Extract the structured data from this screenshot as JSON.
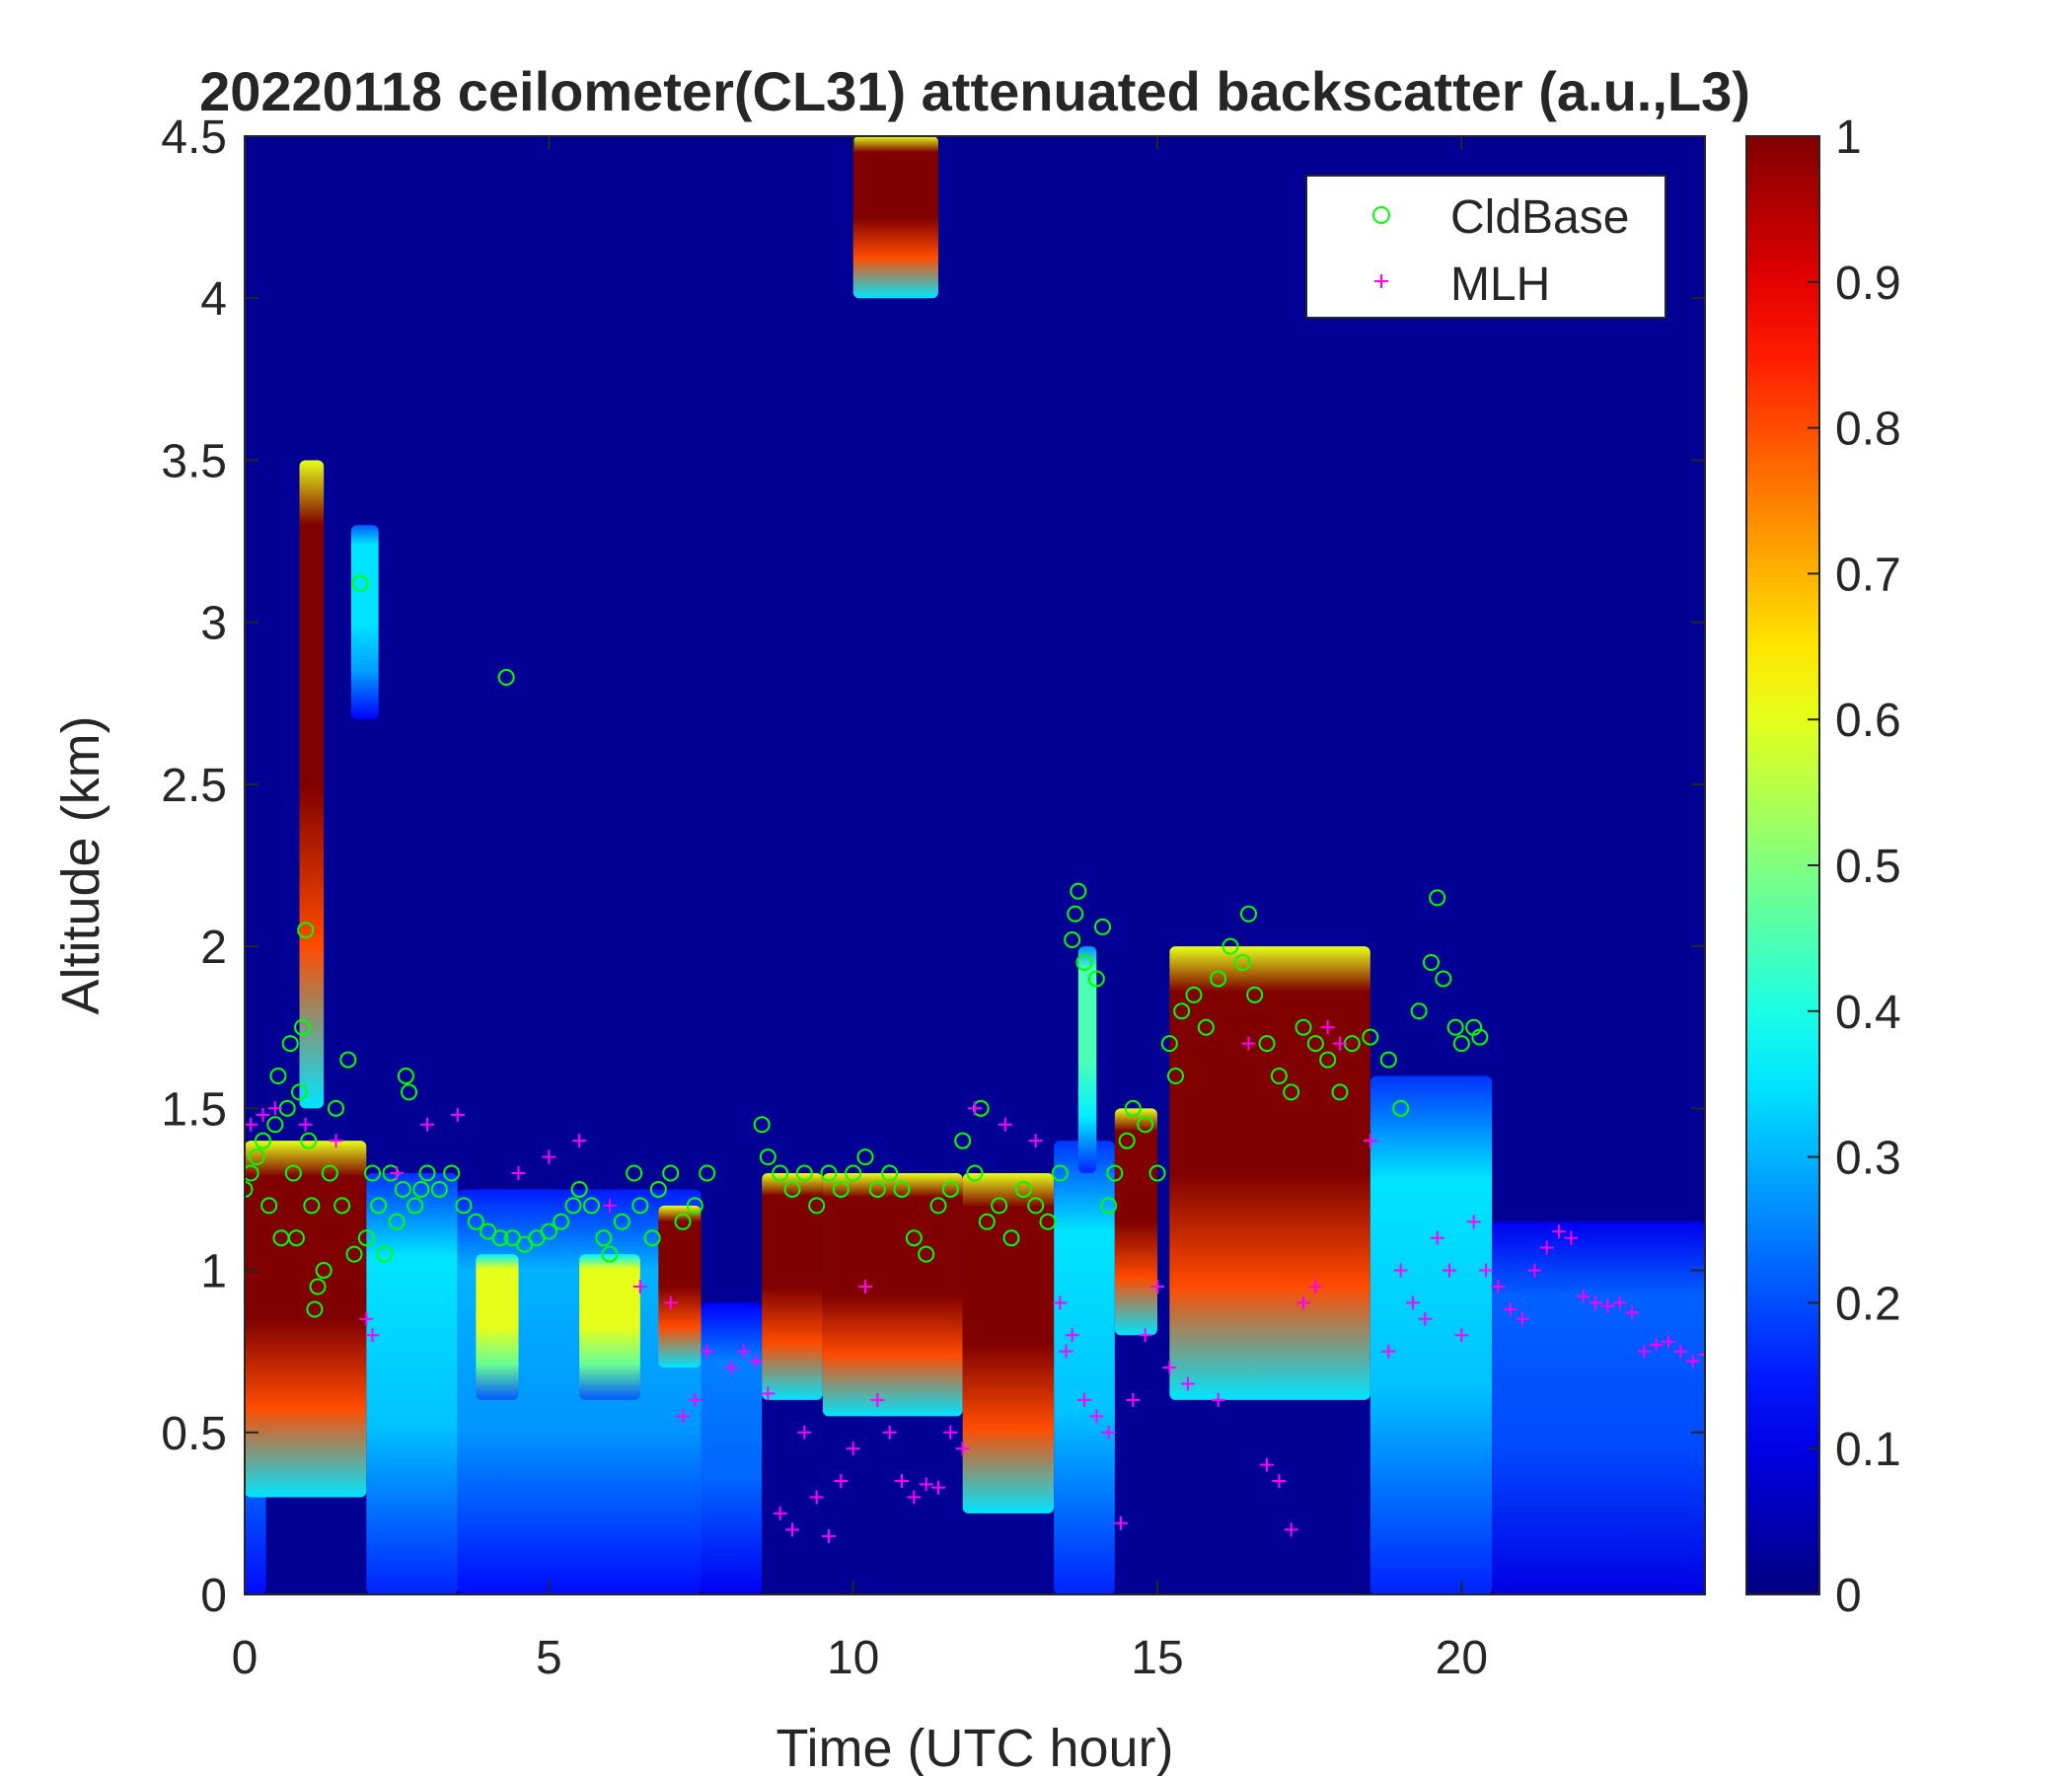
{
  "chart_data": {
    "type": "heatmap",
    "title": "20220118 ceilometer(CL31) attenuated backscatter (a.u.,L3)",
    "xlabel": "Time (UTC hour)",
    "ylabel": "Altitude (km)",
    "xlim": [
      0,
      24
    ],
    "ylim": [
      0,
      4.5
    ],
    "x_ticks": [
      0,
      5,
      10,
      15,
      20
    ],
    "x_tick_labels": [
      "0",
      "5",
      "10",
      "15",
      "20"
    ],
    "y_ticks": [
      0,
      0.5,
      1,
      1.5,
      2,
      2.5,
      3,
      3.5,
      4,
      4.5
    ],
    "y_tick_labels": [
      "0",
      "0.5",
      "1",
      "1.5",
      "2",
      "2.5",
      "3",
      "3.5",
      "4",
      "4.5"
    ],
    "colorbar": {
      "colormap": "jet",
      "range": [
        0,
        1
      ],
      "ticks": [
        0,
        0.1,
        0.2,
        0.3,
        0.4,
        0.5,
        0.6,
        0.7,
        0.8,
        0.9,
        1
      ],
      "tick_labels": [
        "0",
        "0.1",
        "0.2",
        "0.3",
        "0.4",
        "0.5",
        "0.6",
        "0.7",
        "0.8",
        "0.9",
        "1"
      ]
    },
    "legend": {
      "placement": "top-right",
      "entries": [
        {
          "label": "CldBase",
          "marker": "circle",
          "color": "#00ff00"
        },
        {
          "label": "MLH",
          "marker": "plus",
          "color": "#ff00ff"
        }
      ]
    },
    "background_value": 0.02,
    "heatmap_regions": [
      {
        "time": [
          0.0,
          0.35
        ],
        "top_km": 1.35,
        "value": 0.3
      },
      {
        "time": [
          0.0,
          2.0
        ],
        "top_km": 1.4,
        "value": 1.0,
        "bottom_km": 0.3
      },
      {
        "time": [
          0.9,
          1.3
        ],
        "top_km": 3.5,
        "value": 1.0,
        "bottom_km": 1.5
      },
      {
        "time": [
          1.75,
          2.2
        ],
        "top_km": 3.3,
        "value": 0.35,
        "bottom_km": 2.7
      },
      {
        "time": [
          2.0,
          3.5
        ],
        "top_km": 1.3,
        "value": 0.35
      },
      {
        "time": [
          3.5,
          7.5
        ],
        "top_km": 1.25,
        "value": 0.3
      },
      {
        "time": [
          3.8,
          4.5
        ],
        "top_km": 1.05,
        "value": 0.6,
        "bottom_km": 0.6
      },
      {
        "time": [
          5.5,
          6.5
        ],
        "top_km": 1.05,
        "value": 0.6,
        "bottom_km": 0.6
      },
      {
        "time": [
          6.8,
          7.5
        ],
        "top_km": 1.2,
        "value": 1.0,
        "bottom_km": 0.7
      },
      {
        "time": [
          7.5,
          8.5
        ],
        "top_km": 0.9,
        "value": 0.25
      },
      {
        "time": [
          8.5,
          9.5
        ],
        "top_km": 1.3,
        "value": 1.0,
        "bottom_km": 0.6
      },
      {
        "time": [
          9.5,
          11.8
        ],
        "top_km": 1.3,
        "value": 1.0,
        "bottom_km": 0.55
      },
      {
        "time": [
          11.8,
          13.3
        ],
        "top_km": 1.3,
        "value": 1.0,
        "bottom_km": 0.25
      },
      {
        "time": [
          10.0,
          11.4
        ],
        "top_km": 4.5,
        "value": 1.0,
        "bottom_km": 4.0
      },
      {
        "time": [
          13.3,
          14.3
        ],
        "top_km": 1.4,
        "value": 0.35
      },
      {
        "time": [
          13.7,
          14.0
        ],
        "top_km": 2.0,
        "value": 0.45,
        "bottom_km": 1.3
      },
      {
        "time": [
          14.3,
          15.0
        ],
        "top_km": 1.5,
        "value": 1.0,
        "bottom_km": 0.8
      },
      {
        "time": [
          15.2,
          18.5
        ],
        "top_km": 2.0,
        "value": 1.0,
        "bottom_km": 0.6
      },
      {
        "time": [
          18.5,
          20.5
        ],
        "top_km": 1.6,
        "value": 0.35
      },
      {
        "time": [
          20.5,
          24.0
        ],
        "top_km": 1.15,
        "value": 0.22
      }
    ],
    "series": [
      {
        "name": "CldBase",
        "marker": "circle",
        "points": [
          [
            0.0,
            1.25
          ],
          [
            0.1,
            1.3
          ],
          [
            0.2,
            1.35
          ],
          [
            0.3,
            1.4
          ],
          [
            0.4,
            1.2
          ],
          [
            0.5,
            1.45
          ],
          [
            0.55,
            1.6
          ],
          [
            0.6,
            1.1
          ],
          [
            0.7,
            1.5
          ],
          [
            0.75,
            1.7
          ],
          [
            0.8,
            1.3
          ],
          [
            0.85,
            1.1
          ],
          [
            0.9,
            1.55
          ],
          [
            0.95,
            1.75
          ],
          [
            1.0,
            2.05
          ],
          [
            1.05,
            1.4
          ],
          [
            1.1,
            1.2
          ],
          [
            1.15,
            0.88
          ],
          [
            1.2,
            0.95
          ],
          [
            1.3,
            1.0
          ],
          [
            1.4,
            1.3
          ],
          [
            1.5,
            1.5
          ],
          [
            1.6,
            1.2
          ],
          [
            1.7,
            1.65
          ],
          [
            1.8,
            1.05
          ],
          [
            1.9,
            3.12
          ],
          [
            2.0,
            1.1
          ],
          [
            2.1,
            1.3
          ],
          [
            2.2,
            1.2
          ],
          [
            2.3,
            1.05
          ],
          [
            2.4,
            1.3
          ],
          [
            2.5,
            1.15
          ],
          [
            2.6,
            1.25
          ],
          [
            2.65,
            1.6
          ],
          [
            2.7,
            1.55
          ],
          [
            2.8,
            1.2
          ],
          [
            2.9,
            1.25
          ],
          [
            3.0,
            1.3
          ],
          [
            3.2,
            1.25
          ],
          [
            3.4,
            1.3
          ],
          [
            3.6,
            1.2
          ],
          [
            3.8,
            1.15
          ],
          [
            4.0,
            1.12
          ],
          [
            4.2,
            1.1
          ],
          [
            4.3,
            2.83
          ],
          [
            4.4,
            1.1
          ],
          [
            4.6,
            1.08
          ],
          [
            4.8,
            1.1
          ],
          [
            5.0,
            1.12
          ],
          [
            5.2,
            1.15
          ],
          [
            5.4,
            1.2
          ],
          [
            5.5,
            1.25
          ],
          [
            5.7,
            1.2
          ],
          [
            5.9,
            1.1
          ],
          [
            6.0,
            1.05
          ],
          [
            6.2,
            1.15
          ],
          [
            6.4,
            1.3
          ],
          [
            6.5,
            1.2
          ],
          [
            6.7,
            1.1
          ],
          [
            6.8,
            1.25
          ],
          [
            7.0,
            1.3
          ],
          [
            7.2,
            1.15
          ],
          [
            7.4,
            1.2
          ],
          [
            7.6,
            1.3
          ],
          [
            8.5,
            1.45
          ],
          [
            8.6,
            1.35
          ],
          [
            8.8,
            1.3
          ],
          [
            9.0,
            1.25
          ],
          [
            9.2,
            1.3
          ],
          [
            9.4,
            1.2
          ],
          [
            9.6,
            1.3
          ],
          [
            9.8,
            1.25
          ],
          [
            10.0,
            1.3
          ],
          [
            10.2,
            1.35
          ],
          [
            10.4,
            1.25
          ],
          [
            10.6,
            1.3
          ],
          [
            10.8,
            1.25
          ],
          [
            11.0,
            1.1
          ],
          [
            11.2,
            1.05
          ],
          [
            11.4,
            1.2
          ],
          [
            11.6,
            1.25
          ],
          [
            11.8,
            1.4
          ],
          [
            12.0,
            1.3
          ],
          [
            12.1,
            1.5
          ],
          [
            12.2,
            1.15
          ],
          [
            12.4,
            1.2
          ],
          [
            12.6,
            1.1
          ],
          [
            12.8,
            1.25
          ],
          [
            13.0,
            1.2
          ],
          [
            13.2,
            1.15
          ],
          [
            13.4,
            1.3
          ],
          [
            13.6,
            2.02
          ],
          [
            13.65,
            2.1
          ],
          [
            13.7,
            2.17
          ],
          [
            13.8,
            1.95
          ],
          [
            14.0,
            1.9
          ],
          [
            14.1,
            2.06
          ],
          [
            14.2,
            1.2
          ],
          [
            14.3,
            1.3
          ],
          [
            14.5,
            1.4
          ],
          [
            14.6,
            1.5
          ],
          [
            14.8,
            1.45
          ],
          [
            15.0,
            1.3
          ],
          [
            15.2,
            1.7
          ],
          [
            15.3,
            1.6
          ],
          [
            15.4,
            1.8
          ],
          [
            15.6,
            1.85
          ],
          [
            15.8,
            1.75
          ],
          [
            16.0,
            1.9
          ],
          [
            16.2,
            2.0
          ],
          [
            16.4,
            1.95
          ],
          [
            16.5,
            2.1
          ],
          [
            16.6,
            1.85
          ],
          [
            16.8,
            1.7
          ],
          [
            17.0,
            1.6
          ],
          [
            17.2,
            1.55
          ],
          [
            17.4,
            1.75
          ],
          [
            17.6,
            1.7
          ],
          [
            17.8,
            1.65
          ],
          [
            18.0,
            1.55
          ],
          [
            18.2,
            1.7
          ],
          [
            18.5,
            1.72
          ],
          [
            18.8,
            1.65
          ],
          [
            19.0,
            1.5
          ],
          [
            19.3,
            1.8
          ],
          [
            19.5,
            1.95
          ],
          [
            19.6,
            2.15
          ],
          [
            19.7,
            1.9
          ],
          [
            19.9,
            1.75
          ],
          [
            20.0,
            1.7
          ],
          [
            20.2,
            1.75
          ],
          [
            20.3,
            1.72
          ]
        ]
      },
      {
        "name": "MLH",
        "marker": "plus",
        "points": [
          [
            0.1,
            1.45
          ],
          [
            0.3,
            1.48
          ],
          [
            0.5,
            1.5
          ],
          [
            1.0,
            1.45
          ],
          [
            1.5,
            1.4
          ],
          [
            2.0,
            0.85
          ],
          [
            2.1,
            0.8
          ],
          [
            2.5,
            1.3
          ],
          [
            3.0,
            1.45
          ],
          [
            3.5,
            1.48
          ],
          [
            4.5,
            1.3
          ],
          [
            5.0,
            1.35
          ],
          [
            5.5,
            1.4
          ],
          [
            6.0,
            1.2
          ],
          [
            6.5,
            0.95
          ],
          [
            7.0,
            0.9
          ],
          [
            7.2,
            0.55
          ],
          [
            7.4,
            0.6
          ],
          [
            7.6,
            0.75
          ],
          [
            8.0,
            0.7
          ],
          [
            8.2,
            0.75
          ],
          [
            8.4,
            0.72
          ],
          [
            8.6,
            0.62
          ],
          [
            8.8,
            0.25
          ],
          [
            9.0,
            0.2
          ],
          [
            9.2,
            0.5
          ],
          [
            9.4,
            0.3
          ],
          [
            9.6,
            0.18
          ],
          [
            9.8,
            0.35
          ],
          [
            10.0,
            0.45
          ],
          [
            10.2,
            0.95
          ],
          [
            10.4,
            0.6
          ],
          [
            10.6,
            0.5
          ],
          [
            10.8,
            0.35
          ],
          [
            11.0,
            0.3
          ],
          [
            11.2,
            0.34
          ],
          [
            11.4,
            0.33
          ],
          [
            11.6,
            0.5
          ],
          [
            11.8,
            0.45
          ],
          [
            12.0,
            1.5
          ],
          [
            12.5,
            1.45
          ],
          [
            13.0,
            1.4
          ],
          [
            13.4,
            0.9
          ],
          [
            13.5,
            0.75
          ],
          [
            13.6,
            0.8
          ],
          [
            13.8,
            0.6
          ],
          [
            14.0,
            0.55
          ],
          [
            14.2,
            0.5
          ],
          [
            14.4,
            0.22
          ],
          [
            14.6,
            0.6
          ],
          [
            14.8,
            0.8
          ],
          [
            15.0,
            0.95
          ],
          [
            15.2,
            0.7
          ],
          [
            15.5,
            0.65
          ],
          [
            16.0,
            0.6
          ],
          [
            16.5,
            1.7
          ],
          [
            16.8,
            0.4
          ],
          [
            17.0,
            0.35
          ],
          [
            17.2,
            0.2
          ],
          [
            17.4,
            0.9
          ],
          [
            17.6,
            0.95
          ],
          [
            17.8,
            1.75
          ],
          [
            18.0,
            1.7
          ],
          [
            18.5,
            1.4
          ],
          [
            18.8,
            0.75
          ],
          [
            19.0,
            1.0
          ],
          [
            19.2,
            0.9
          ],
          [
            19.4,
            0.85
          ],
          [
            19.6,
            1.1
          ],
          [
            19.8,
            1.0
          ],
          [
            20.0,
            0.8
          ],
          [
            20.2,
            1.15
          ],
          [
            20.4,
            1.0
          ],
          [
            20.6,
            0.95
          ],
          [
            20.8,
            0.88
          ],
          [
            21.0,
            0.85
          ],
          [
            21.2,
            1.0
          ],
          [
            21.4,
            1.07
          ],
          [
            21.6,
            1.12
          ],
          [
            21.8,
            1.1
          ],
          [
            22.0,
            0.92
          ],
          [
            22.2,
            0.9
          ],
          [
            22.4,
            0.89
          ],
          [
            22.6,
            0.9
          ],
          [
            22.8,
            0.87
          ],
          [
            23.0,
            0.75
          ],
          [
            23.2,
            0.77
          ],
          [
            23.4,
            0.78
          ],
          [
            23.6,
            0.75
          ],
          [
            23.8,
            0.72
          ],
          [
            24.0,
            0.74
          ]
        ]
      }
    ]
  }
}
